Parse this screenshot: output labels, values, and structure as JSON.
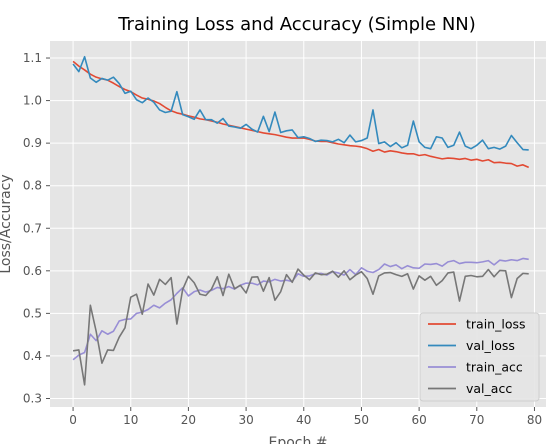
{
  "chart_data": {
    "type": "line",
    "title": "Training Loss and Accuracy (Simple NN)",
    "xlabel": "Epoch #",
    "ylabel": "Loss/Accuracy",
    "xlim": [
      -4,
      82
    ],
    "ylim": [
      0.28,
      1.14
    ],
    "xticks": [
      0,
      10,
      20,
      30,
      40,
      50,
      60,
      70,
      80
    ],
    "yticks": [
      0.3,
      0.4,
      0.5,
      0.6,
      0.7,
      0.8,
      0.9,
      1.0,
      1.1
    ],
    "grid": true,
    "legend_position": "lower-right",
    "style": {
      "plot_bg": "#e5e5e5",
      "grid_color": "#ffffff",
      "tick_color": "#555555"
    },
    "x": [
      0,
      1,
      2,
      3,
      4,
      5,
      6,
      7,
      8,
      9,
      10,
      11,
      12,
      13,
      14,
      15,
      16,
      17,
      18,
      19,
      20,
      21,
      22,
      23,
      24,
      25,
      26,
      27,
      28,
      29,
      30,
      31,
      32,
      33,
      34,
      35,
      36,
      37,
      38,
      39,
      40,
      41,
      42,
      43,
      44,
      45,
      46,
      47,
      48,
      49,
      50,
      51,
      52,
      53,
      54,
      55,
      56,
      57,
      58,
      59,
      60,
      61,
      62,
      63,
      64,
      65,
      66,
      67,
      68,
      69,
      70,
      71,
      72,
      73,
      74,
      75,
      76,
      77,
      78,
      79
    ],
    "series": [
      {
        "name": "train_loss",
        "color": "#e24a33",
        "values": [
          1.092,
          1.081,
          1.072,
          1.062,
          1.055,
          1.051,
          1.048,
          1.041,
          1.033,
          1.026,
          1.021,
          1.013,
          1.006,
          1.003,
          0.999,
          0.993,
          0.984,
          0.976,
          0.971,
          0.968,
          0.964,
          0.961,
          0.957,
          0.955,
          0.952,
          0.949,
          0.945,
          0.942,
          0.939,
          0.936,
          0.933,
          0.93,
          0.927,
          0.924,
          0.922,
          0.92,
          0.917,
          0.914,
          0.912,
          0.912,
          0.912,
          0.909,
          0.905,
          0.904,
          0.904,
          0.901,
          0.898,
          0.896,
          0.894,
          0.893,
          0.891,
          0.887,
          0.881,
          0.885,
          0.879,
          0.882,
          0.88,
          0.877,
          0.875,
          0.875,
          0.871,
          0.873,
          0.869,
          0.866,
          0.863,
          0.865,
          0.864,
          0.862,
          0.864,
          0.86,
          0.862,
          0.858,
          0.861,
          0.854,
          0.855,
          0.853,
          0.852,
          0.846,
          0.849,
          0.843
        ]
      },
      {
        "name": "val_loss",
        "color": "#348abd",
        "values": [
          1.086,
          1.068,
          1.103,
          1.053,
          1.043,
          1.052,
          1.048,
          1.055,
          1.04,
          1.017,
          1.022,
          1.002,
          0.995,
          1.006,
          0.996,
          0.978,
          0.972,
          0.975,
          1.021,
          0.967,
          0.962,
          0.956,
          0.978,
          0.955,
          0.955,
          0.947,
          0.958,
          0.94,
          0.938,
          0.935,
          0.944,
          0.933,
          0.926,
          0.963,
          0.927,
          0.973,
          0.925,
          0.929,
          0.931,
          0.913,
          0.915,
          0.911,
          0.904,
          0.907,
          0.906,
          0.903,
          0.909,
          0.901,
          0.919,
          0.903,
          0.906,
          0.912,
          0.978,
          0.899,
          0.903,
          0.892,
          0.901,
          0.889,
          0.895,
          0.952,
          0.903,
          0.89,
          0.887,
          0.915,
          0.912,
          0.89,
          0.895,
          0.926,
          0.893,
          0.887,
          0.895,
          0.907,
          0.887,
          0.89,
          0.886,
          0.893,
          0.918,
          0.901,
          0.885,
          0.884
        ]
      },
      {
        "name": "train_acc",
        "color": "#988ed5",
        "values": [
          0.391,
          0.402,
          0.408,
          0.451,
          0.436,
          0.459,
          0.451,
          0.458,
          0.482,
          0.486,
          0.487,
          0.5,
          0.503,
          0.509,
          0.519,
          0.513,
          0.524,
          0.532,
          0.547,
          0.56,
          0.541,
          0.551,
          0.555,
          0.55,
          0.554,
          0.561,
          0.558,
          0.563,
          0.557,
          0.566,
          0.571,
          0.571,
          0.567,
          0.576,
          0.574,
          0.58,
          0.576,
          0.578,
          0.575,
          0.593,
          0.587,
          0.588,
          0.593,
          0.594,
          0.59,
          0.598,
          0.595,
          0.59,
          0.603,
          0.591,
          0.607,
          0.599,
          0.596,
          0.603,
          0.616,
          0.61,
          0.614,
          0.605,
          0.612,
          0.607,
          0.606,
          0.616,
          0.615,
          0.617,
          0.611,
          0.621,
          0.624,
          0.617,
          0.62,
          0.62,
          0.619,
          0.621,
          0.624,
          0.614,
          0.625,
          0.623,
          0.626,
          0.624,
          0.629,
          0.627
        ]
      },
      {
        "name": "val_acc",
        "color": "#777777",
        "values": [
          0.412,
          0.414,
          0.332,
          0.519,
          0.458,
          0.383,
          0.414,
          0.413,
          0.444,
          0.466,
          0.538,
          0.545,
          0.498,
          0.569,
          0.543,
          0.58,
          0.568,
          0.584,
          0.475,
          0.556,
          0.587,
          0.572,
          0.545,
          0.542,
          0.557,
          0.586,
          0.542,
          0.592,
          0.558,
          0.566,
          0.548,
          0.585,
          0.586,
          0.552,
          0.584,
          0.531,
          0.551,
          0.591,
          0.573,
          0.604,
          0.59,
          0.579,
          0.595,
          0.591,
          0.592,
          0.599,
          0.585,
          0.6,
          0.579,
          0.59,
          0.598,
          0.582,
          0.545,
          0.588,
          0.595,
          0.596,
          0.591,
          0.587,
          0.593,
          0.557,
          0.588,
          0.578,
          0.587,
          0.566,
          0.577,
          0.595,
          0.597,
          0.529,
          0.587,
          0.589,
          0.586,
          0.587,
          0.603,
          0.586,
          0.601,
          0.6,
          0.537,
          0.582,
          0.594,
          0.593
        ]
      }
    ]
  }
}
